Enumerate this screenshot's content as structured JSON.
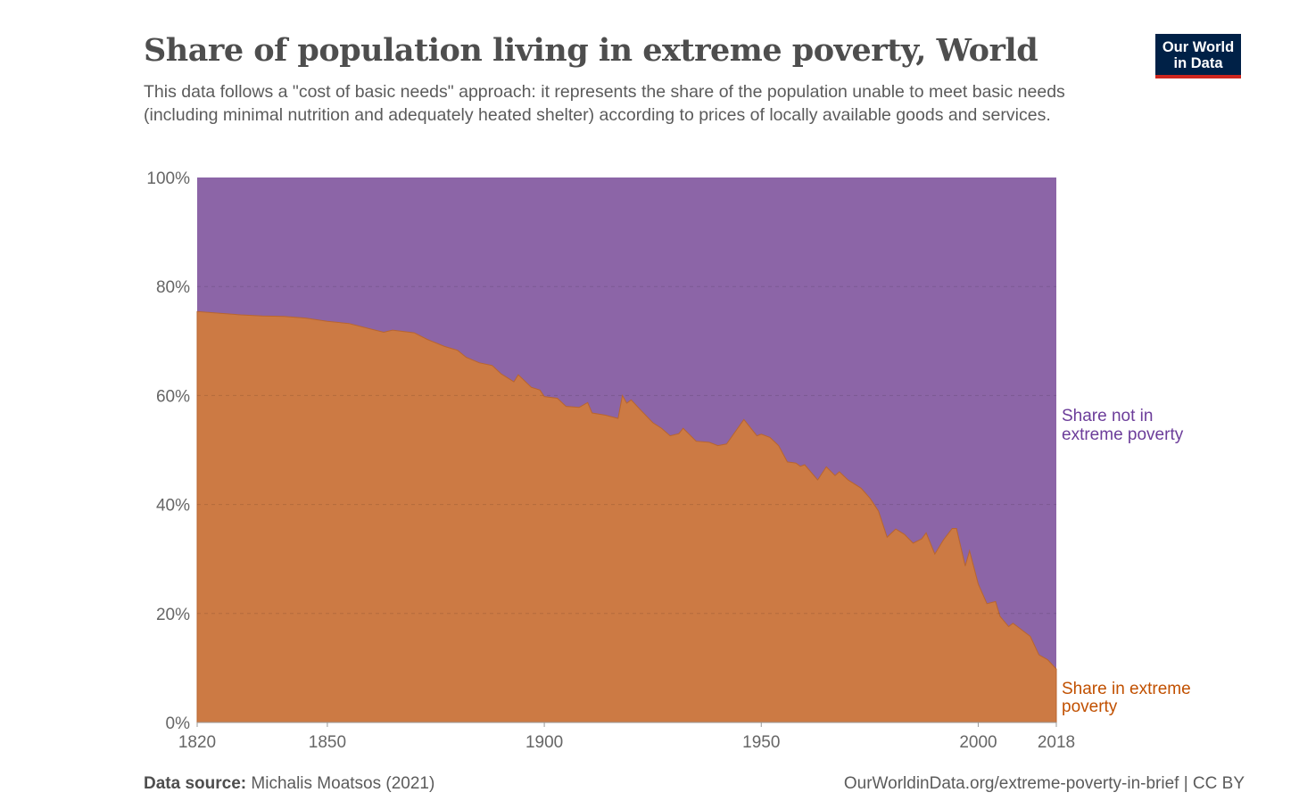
{
  "header": {
    "title": "Share of population living in extreme poverty, World",
    "subtitle": "This data follows a \"cost of basic needs\" approach: it represents the share of the population unable to meet basic needs (including minimal nutrition and adequately heated shelter) according to prices of locally available goods and services.",
    "logo_line1": "Our World",
    "logo_line2": "in Data"
  },
  "footer": {
    "source_label": "Data source:",
    "source_value": "Michalis Moatsos (2021)",
    "url_license": "OurWorldinData.org/extreme-poverty-in-brief | CC BY"
  },
  "colors": {
    "poverty": "#cc7a44",
    "not_poverty": "#8c65a7",
    "poverty_label": "#c15000",
    "not_poverty_label": "#6c3d9a"
  },
  "chart_data": {
    "type": "area",
    "stacked": true,
    "title": "Share of population living in extreme poverty, World",
    "xlim": [
      1820,
      2018
    ],
    "ylim": [
      0,
      100
    ],
    "x_ticks": [
      1820,
      1850,
      1900,
      1950,
      2000,
      2018
    ],
    "y_ticks": [
      "0%",
      "20%",
      "40%",
      "60%",
      "80%",
      "100%"
    ],
    "y_tick_values": [
      0,
      20,
      40,
      60,
      80,
      100
    ],
    "grid": true,
    "series": [
      {
        "name": "Share in extreme poverty",
        "label_lines": [
          "Share in extreme",
          "poverty"
        ]
      },
      {
        "name": "Share not in extreme poverty",
        "label_lines": [
          "Share not in",
          "extreme poverty"
        ]
      }
    ],
    "x": [
      1820,
      1825,
      1830,
      1835,
      1840,
      1845,
      1850,
      1855,
      1860,
      1863,
      1865,
      1870,
      1873,
      1877,
      1880,
      1882,
      1885,
      1888,
      1890,
      1893,
      1894,
      1897,
      1899,
      1900,
      1903,
      1905,
      1908,
      1910,
      1911,
      1914,
      1917,
      1918,
      1919,
      1920,
      1922,
      1925,
      1927,
      1929,
      1931,
      1932,
      1935,
      1938,
      1940,
      1942,
      1946,
      1949,
      1950,
      1952,
      1954,
      1956,
      1958,
      1959,
      1960,
      1963,
      1965,
      1967,
      1968,
      1970,
      1973,
      1975,
      1977,
      1979,
      1981,
      1983,
      1985,
      1987,
      1988,
      1990,
      1992,
      1994,
      1995,
      1997,
      1998,
      2000,
      2002,
      2004,
      2005,
      2007,
      2008,
      2010,
      2012,
      2014,
      2016,
      2018
    ],
    "poverty": [
      75.4,
      75.1,
      74.8,
      74.6,
      74.5,
      74.2,
      73.6,
      73.2,
      72.2,
      71.6,
      72.0,
      71.5,
      70.3,
      69.0,
      68.3,
      67.0,
      66.0,
      65.5,
      64.0,
      62.5,
      63.8,
      61.5,
      61.0,
      59.8,
      59.5,
      58.0,
      57.8,
      58.7,
      56.8,
      56.4,
      55.8,
      60.0,
      58.6,
      59.2,
      57.5,
      55.0,
      54.0,
      52.6,
      53.0,
      54.0,
      51.6,
      51.4,
      50.8,
      51.1,
      55.6,
      52.6,
      52.9,
      52.3,
      50.8,
      47.8,
      47.6,
      47.0,
      47.3,
      44.5,
      46.9,
      45.3,
      46.0,
      44.5,
      43.0,
      41.2,
      38.8,
      34.0,
      35.5,
      34.5,
      32.9,
      33.7,
      34.8,
      30.9,
      33.5,
      35.6,
      35.6,
      28.7,
      31.5,
      25.4,
      21.8,
      22.2,
      19.5,
      17.6,
      18.2,
      17.0,
      15.8,
      12.4,
      11.5,
      9.8
    ]
  }
}
